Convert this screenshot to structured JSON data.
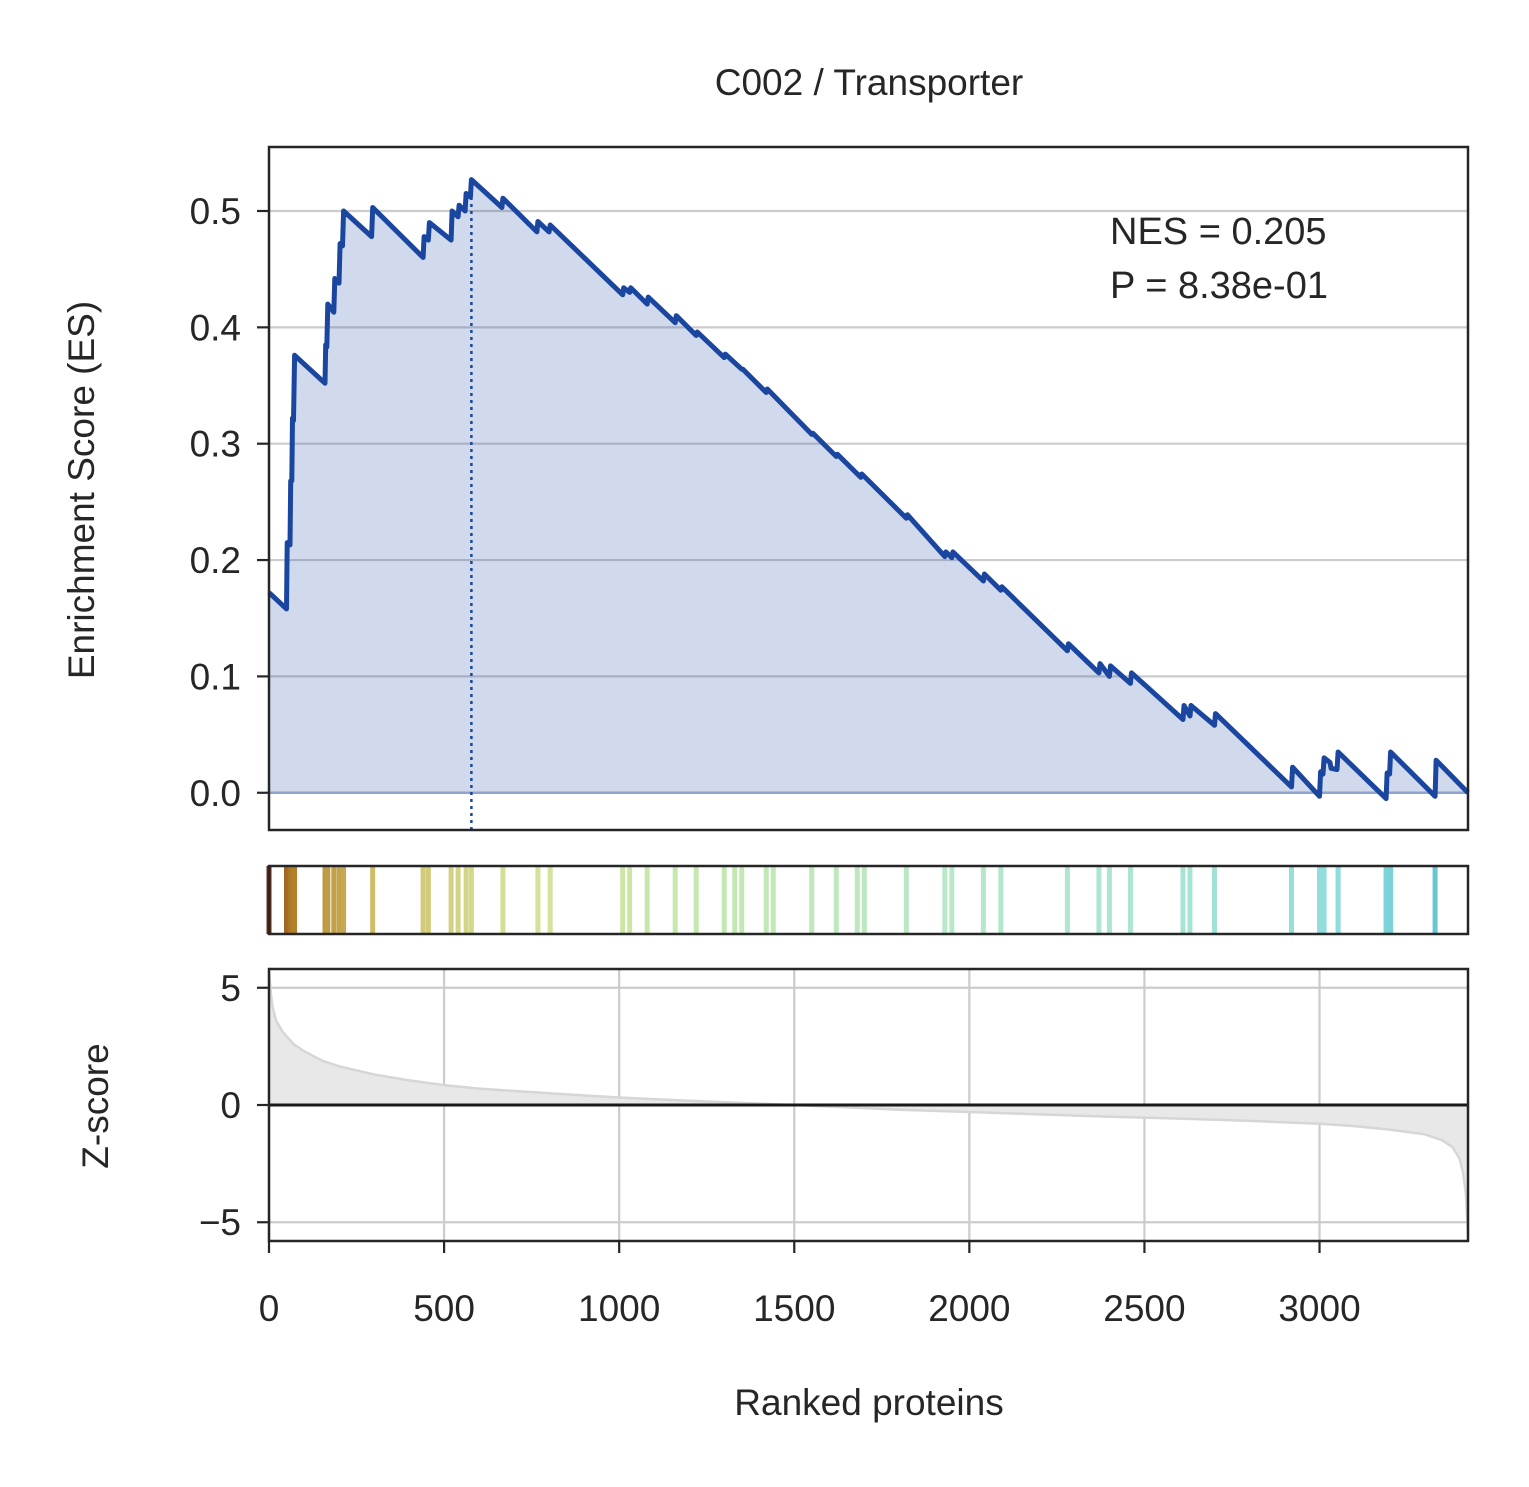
{
  "title": "C002 / Transporter",
  "annotation": {
    "nes": "NES = 0.205",
    "p": "P = 8.38e-01"
  },
  "colors": {
    "es_line": "#1a46a0",
    "es_fill": "#cfd9ea",
    "grid": "#cccccc",
    "axis": "#262626",
    "zscore_fill": "#e8e8e8",
    "zscore_line": "#d6d6d6"
  },
  "chart_data": [
    {
      "type": "line",
      "panel": "enrichment",
      "ylabel": "Enrichment Score (ES)",
      "xlim": [
        0,
        3424
      ],
      "ylim": [
        -0.032,
        0.555
      ],
      "yticks": [
        0.0,
        0.1,
        0.2,
        0.3,
        0.4,
        0.5
      ],
      "ytick_labels": [
        "0.0",
        "0.1",
        "0.2",
        "0.3",
        "0.4",
        "0.5"
      ],
      "grid": "horizontal",
      "fill_below": true,
      "peak_rank": 578,
      "hits": [
        {
          "rank": 0,
          "es": 0.172
        },
        {
          "rank": 50,
          "es": 0.158
        },
        {
          "rank": 52,
          "es": 0.215
        },
        {
          "rank": 60,
          "es": 0.213
        },
        {
          "rank": 62,
          "es": 0.268
        },
        {
          "rank": 65,
          "es": 0.268
        },
        {
          "rank": 67,
          "es": 0.322
        },
        {
          "rank": 70,
          "es": 0.32
        },
        {
          "rank": 73,
          "es": 0.376
        },
        {
          "rank": 160,
          "es": 0.352
        },
        {
          "rank": 162,
          "es": 0.385
        },
        {
          "rank": 165,
          "es": 0.383
        },
        {
          "rank": 168,
          "es": 0.42
        },
        {
          "rank": 185,
          "es": 0.413
        },
        {
          "rank": 188,
          "es": 0.442
        },
        {
          "rank": 200,
          "es": 0.438
        },
        {
          "rank": 203,
          "es": 0.472
        },
        {
          "rank": 210,
          "es": 0.47
        },
        {
          "rank": 213,
          "es": 0.5
        },
        {
          "rank": 293,
          "es": 0.478
        },
        {
          "rank": 296,
          "es": 0.503
        },
        {
          "rank": 440,
          "es": 0.46
        },
        {
          "rank": 443,
          "es": 0.478
        },
        {
          "rank": 455,
          "es": 0.475
        },
        {
          "rank": 458,
          "es": 0.49
        },
        {
          "rank": 520,
          "es": 0.475
        },
        {
          "rank": 523,
          "es": 0.5
        },
        {
          "rank": 540,
          "es": 0.495
        },
        {
          "rank": 543,
          "es": 0.505
        },
        {
          "rank": 560,
          "es": 0.5
        },
        {
          "rank": 563,
          "es": 0.515
        },
        {
          "rank": 575,
          "es": 0.512
        },
        {
          "rank": 578,
          "es": 0.527
        },
        {
          "rank": 665,
          "es": 0.503
        },
        {
          "rank": 668,
          "es": 0.511
        },
        {
          "rank": 765,
          "es": 0.482
        },
        {
          "rank": 768,
          "es": 0.491
        },
        {
          "rank": 800,
          "es": 0.482
        },
        {
          "rank": 803,
          "es": 0.488
        },
        {
          "rank": 1010,
          "es": 0.428
        },
        {
          "rank": 1013,
          "es": 0.434
        },
        {
          "rank": 1030,
          "es": 0.43
        },
        {
          "rank": 1033,
          "es": 0.434
        },
        {
          "rank": 1080,
          "es": 0.42
        },
        {
          "rank": 1083,
          "es": 0.426
        },
        {
          "rank": 1160,
          "es": 0.404
        },
        {
          "rank": 1163,
          "es": 0.41
        },
        {
          "rank": 1220,
          "es": 0.393
        },
        {
          "rank": 1223,
          "es": 0.396
        },
        {
          "rank": 1300,
          "es": 0.374
        },
        {
          "rank": 1303,
          "es": 0.377
        },
        {
          "rank": 1350,
          "es": 0.364
        },
        {
          "rank": 1353,
          "es": 0.364
        },
        {
          "rank": 1420,
          "es": 0.344
        },
        {
          "rank": 1423,
          "es": 0.347
        },
        {
          "rank": 1550,
          "es": 0.308
        },
        {
          "rank": 1553,
          "es": 0.309
        },
        {
          "rank": 1620,
          "es": 0.289
        },
        {
          "rank": 1623,
          "es": 0.291
        },
        {
          "rank": 1690,
          "es": 0.271
        },
        {
          "rank": 1693,
          "es": 0.274
        },
        {
          "rank": 1820,
          "es": 0.236
        },
        {
          "rank": 1823,
          "es": 0.239
        },
        {
          "rank": 1930,
          "es": 0.203
        },
        {
          "rank": 1933,
          "es": 0.207
        },
        {
          "rank": 1950,
          "es": 0.202
        },
        {
          "rank": 1953,
          "es": 0.207
        },
        {
          "rank": 2040,
          "es": 0.182
        },
        {
          "rank": 2043,
          "es": 0.188
        },
        {
          "rank": 2090,
          "es": 0.174
        },
        {
          "rank": 2093,
          "es": 0.177
        },
        {
          "rank": 2280,
          "es": 0.122
        },
        {
          "rank": 2283,
          "es": 0.128
        },
        {
          "rank": 2370,
          "es": 0.103
        },
        {
          "rank": 2373,
          "es": 0.111
        },
        {
          "rank": 2400,
          "es": 0.1
        },
        {
          "rank": 2403,
          "es": 0.109
        },
        {
          "rank": 2460,
          "es": 0.094
        },
        {
          "rank": 2463,
          "es": 0.103
        },
        {
          "rank": 2610,
          "es": 0.063
        },
        {
          "rank": 2613,
          "es": 0.075
        },
        {
          "rank": 2630,
          "es": 0.066
        },
        {
          "rank": 2633,
          "es": 0.075
        },
        {
          "rank": 2700,
          "es": 0.058
        },
        {
          "rank": 2703,
          "es": 0.068
        },
        {
          "rank": 2920,
          "es": 0.005
        },
        {
          "rank": 2923,
          "es": 0.022
        },
        {
          "rank": 3000,
          "es": -0.003
        },
        {
          "rank": 3003,
          "es": 0.018
        },
        {
          "rank": 3010,
          "es": 0.016
        },
        {
          "rank": 3013,
          "es": 0.03
        },
        {
          "rank": 3030,
          "es": 0.026
        },
        {
          "rank": 3033,
          "es": 0.021
        },
        {
          "rank": 3050,
          "es": 0.02
        },
        {
          "rank": 3053,
          "es": 0.035
        },
        {
          "rank": 3190,
          "es": -0.005
        },
        {
          "rank": 3193,
          "es": 0.017
        },
        {
          "rank": 3200,
          "es": 0.016
        },
        {
          "rank": 3203,
          "es": 0.035
        },
        {
          "rank": 3330,
          "es": -0.003
        },
        {
          "rank": 3333,
          "es": 0.028
        },
        {
          "rank": 3424,
          "es": 0.0
        }
      ]
    },
    {
      "type": "barcode",
      "panel": "hits",
      "xlim": [
        0,
        3424
      ],
      "ranks": [
        0,
        50,
        60,
        67,
        73,
        160,
        168,
        185,
        200,
        213,
        296,
        440,
        455,
        520,
        540,
        563,
        578,
        668,
        768,
        803,
        1010,
        1030,
        1080,
        1160,
        1220,
        1300,
        1330,
        1350,
        1420,
        1440,
        1550,
        1620,
        1680,
        1700,
        1820,
        1930,
        1950,
        2040,
        2090,
        2280,
        2370,
        2400,
        2460,
        2610,
        2630,
        2700,
        2920,
        3000,
        3013,
        3053,
        3190,
        3203,
        3330
      ]
    },
    {
      "type": "area",
      "panel": "zscore",
      "xlabel": "Ranked proteins",
      "ylabel": "Z-score",
      "xlim": [
        0,
        3424
      ],
      "ylim": [
        -5.8,
        5.8
      ],
      "xticks": [
        0,
        500,
        1000,
        1500,
        2000,
        2500,
        3000
      ],
      "xtick_labels": [
        "0",
        "500",
        "1000",
        "1500",
        "2000",
        "2500",
        "3000"
      ],
      "yticks": [
        -5,
        0,
        5
      ],
      "ytick_labels": [
        "−5",
        "0",
        "5"
      ],
      "grid": "both",
      "x": [
        0,
        5,
        10,
        20,
        40,
        70,
        100,
        150,
        200,
        300,
        400,
        500,
        600,
        800,
        1000,
        1200,
        1400,
        1500,
        1600,
        1800,
        2000,
        2200,
        2400,
        2600,
        2800,
        3000,
        3100,
        3200,
        3300,
        3350,
        3380,
        3400,
        3410,
        3418,
        3424
      ],
      "values": [
        5.8,
        4.8,
        4.2,
        3.6,
        3.1,
        2.6,
        2.3,
        1.9,
        1.65,
        1.3,
        1.05,
        0.85,
        0.7,
        0.5,
        0.32,
        0.18,
        0.06,
        0.0,
        -0.07,
        -0.2,
        -0.3,
        -0.4,
        -0.5,
        -0.58,
        -0.68,
        -0.8,
        -0.9,
        -1.05,
        -1.25,
        -1.5,
        -1.8,
        -2.3,
        -2.9,
        -3.8,
        -5.6
      ]
    }
  ]
}
